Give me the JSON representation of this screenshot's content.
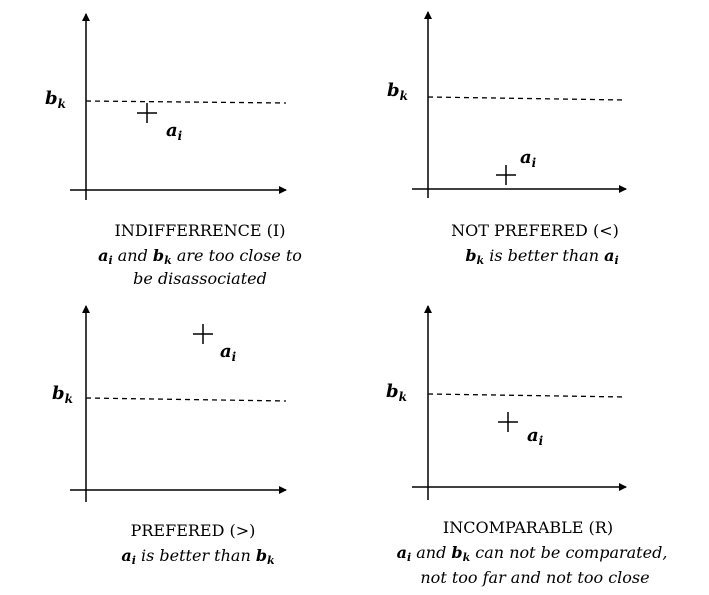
{
  "symbols": {
    "b": "b",
    "b_sub": "k",
    "a": "a",
    "a_sub": "i"
  },
  "panels": [
    {
      "id": "indifference",
      "title": "INDIFFERRENCE (I)",
      "line1": {
        "s1": "a",
        "s1sub": "i",
        "t1": " and ",
        "s2": "b",
        "s2sub": "k",
        "t2": " are too close to"
      },
      "line2": "be disassociated"
    },
    {
      "id": "not-prefered",
      "title": "NOT PREFERED (<)",
      "line1": {
        "s1": "b",
        "s1sub": "k",
        "t1": "  is better than  ",
        "s2": "a",
        "s2sub": "i",
        "t2": ""
      }
    },
    {
      "id": "prefered",
      "title": "PREFERED (>)",
      "line1": {
        "s1": "a",
        "s1sub": "i",
        "t1": "  is better than  ",
        "s2": "b",
        "s2sub": "k",
        "t2": ""
      }
    },
    {
      "id": "incomparable",
      "title": "INCOMPARABLE (R)",
      "line1": {
        "s1": "a",
        "s1sub": "i",
        "t1": " and  ",
        "s2": "b",
        "s2sub": "k",
        "t2": " can not be comparated,"
      },
      "line2": "not too far and not too close"
    }
  ]
}
